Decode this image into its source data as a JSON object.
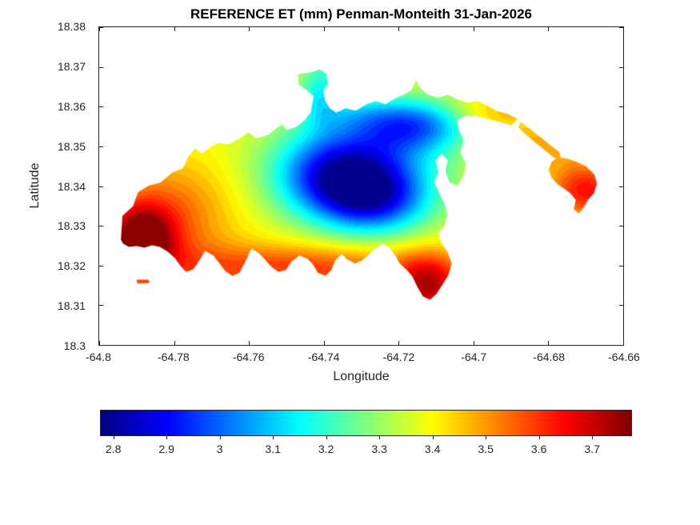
{
  "figure": {
    "title": "REFERENCE ET (mm) Penman-Monteith 31-Jan-2026",
    "xlabel": "Longitude",
    "ylabel": "Latitude",
    "background": "#ffffff",
    "axis_color": "#262626"
  },
  "chart_data": {
    "type": "heatmap",
    "subtype": "filled-contour-geographic-map",
    "title": "REFERENCE ET (mm) Penman-Monteith 31-Jan-2026",
    "variable": "Reference ET",
    "units": "mm",
    "method": "Penman-Monteith",
    "date": "31-Jan-2026",
    "xlabel": "Longitude",
    "ylabel": "Latitude",
    "xlim": [
      -64.8,
      -64.66
    ],
    "ylim": [
      18.3,
      18.38
    ],
    "grid": false,
    "x_ticks": [
      {
        "v": -64.8,
        "label": "-64.8"
      },
      {
        "v": -64.78,
        "label": "-64.78"
      },
      {
        "v": -64.76,
        "label": "-64.76"
      },
      {
        "v": -64.74,
        "label": "-64.74"
      },
      {
        "v": -64.72,
        "label": "-64.72"
      },
      {
        "v": -64.7,
        "label": "-64.7"
      },
      {
        "v": -64.68,
        "label": "-64.68"
      },
      {
        "v": -64.66,
        "label": "-64.66"
      }
    ],
    "y_ticks": [
      {
        "v": 18.3,
        "label": "18.3"
      },
      {
        "v": 18.31,
        "label": "18.31"
      },
      {
        "v": 18.32,
        "label": "18.32"
      },
      {
        "v": 18.33,
        "label": "18.33"
      },
      {
        "v": 18.34,
        "label": "18.34"
      },
      {
        "v": 18.35,
        "label": "18.35"
      },
      {
        "v": 18.36,
        "label": "18.36"
      },
      {
        "v": 18.37,
        "label": "18.37"
      },
      {
        "v": 18.38,
        "label": "18.38"
      }
    ],
    "clim": [
      2.775,
      3.775
    ],
    "band_step": 0.025,
    "colormap_name": "jet",
    "colormap": [
      [
        0.0,
        [
          0,
          0,
          0.5
        ]
      ],
      [
        0.125,
        [
          0,
          0,
          1
        ]
      ],
      [
        0.375,
        [
          0,
          1,
          1
        ]
      ],
      [
        0.625,
        [
          1,
          1,
          0
        ]
      ],
      [
        0.875,
        [
          1,
          0,
          0
        ]
      ],
      [
        1.0,
        [
          0.5,
          0,
          0
        ]
      ]
    ],
    "colorbar_ticks": [
      {
        "v": 2.8,
        "label": "2.8"
      },
      {
        "v": 2.9,
        "label": "2.9"
      },
      {
        "v": 3.0,
        "label": "3"
      },
      {
        "v": 3.1,
        "label": "3.1"
      },
      {
        "v": 3.2,
        "label": "3.2"
      },
      {
        "v": 3.3,
        "label": "3.3"
      },
      {
        "v": 3.4,
        "label": "3.4"
      },
      {
        "v": 3.5,
        "label": "3.5"
      },
      {
        "v": 3.6,
        "label": "3.6"
      },
      {
        "v": 3.7,
        "label": "3.7"
      }
    ],
    "field_model": {
      "base": 3.38,
      "sources": [
        {
          "lon": -64.789,
          "lat": 18.326,
          "amp": 0.4,
          "sx": 0.006,
          "sy": 0.006
        },
        {
          "lon": -64.782,
          "lat": 18.332,
          "amp": 0.18,
          "sx": 0.012,
          "sy": 0.01
        },
        {
          "lon": -64.748,
          "lat": 18.319,
          "amp": 0.22,
          "sx": 0.028,
          "sy": 0.0045
        },
        {
          "lon": -64.712,
          "lat": 18.314,
          "amp": 0.3,
          "sx": 0.006,
          "sy": 0.006
        },
        {
          "lon": -64.737,
          "lat": 18.343,
          "amp": -0.42,
          "sx": 0.012,
          "sy": 0.0075
        },
        {
          "lon": -64.7265,
          "lat": 18.337,
          "amp": -0.42,
          "sx": 0.011,
          "sy": 0.0065
        },
        {
          "lon": -64.716,
          "lat": 18.3555,
          "amp": -0.28,
          "sx": 0.01,
          "sy": 0.0045
        },
        {
          "lon": -64.722,
          "lat": 18.351,
          "amp": -0.16,
          "sx": 0.016,
          "sy": 0.007
        },
        {
          "lon": -64.741,
          "lat": 18.365,
          "amp": -0.18,
          "sx": 0.004,
          "sy": 0.006
        },
        {
          "lon": -64.67,
          "lat": 18.339,
          "amp": 0.26,
          "sx": 0.007,
          "sy": 0.005
        },
        {
          "lon": -64.685,
          "lat": 18.35,
          "amp": 0.12,
          "sx": 0.01,
          "sy": 0.004
        },
        {
          "lon": -64.695,
          "lat": 18.3585,
          "amp": 0.1,
          "sx": 0.008,
          "sy": 0.003
        },
        {
          "lon": -64.733,
          "lat": 18.359,
          "amp": -0.1,
          "sx": 0.01,
          "sy": 0.004
        }
      ]
    },
    "regions": [
      [
        [
          -64.7942,
          18.3265
        ],
        [
          -64.7938,
          18.3325
        ],
        [
          -64.791,
          18.3349
        ],
        [
          -64.7896,
          18.3385
        ],
        [
          -64.7868,
          18.3401
        ],
        [
          -64.7836,
          18.3409
        ],
        [
          -64.7804,
          18.3435
        ],
        [
          -64.7776,
          18.3445
        ],
        [
          -64.7761,
          18.3475
        ],
        [
          -64.7744,
          18.3495
        ],
        [
          -64.7725,
          18.3481
        ],
        [
          -64.7708,
          18.3495
        ],
        [
          -64.7683,
          18.3509
        ],
        [
          -64.7655,
          18.3505
        ],
        [
          -64.7623,
          18.3521
        ],
        [
          -64.7602,
          18.3535
        ],
        [
          -64.758,
          18.3521
        ],
        [
          -64.7548,
          18.3529
        ],
        [
          -64.7527,
          18.3545
        ],
        [
          -64.7512,
          18.3555
        ],
        [
          -64.7499,
          18.3541
        ],
        [
          -64.7474,
          18.3549
        ],
        [
          -64.7452,
          18.3565
        ],
        [
          -64.7435,
          18.3585
        ],
        [
          -64.7427,
          18.3626
        ],
        [
          -64.7446,
          18.3642
        ],
        [
          -64.7467,
          18.3656
        ],
        [
          -64.7469,
          18.3682
        ],
        [
          -64.7435,
          18.3686
        ],
        [
          -64.741,
          18.3694
        ],
        [
          -64.7393,
          18.3682
        ],
        [
          -64.7388,
          18.3658
        ],
        [
          -64.7401,
          18.3642
        ],
        [
          -64.7397,
          18.3616
        ],
        [
          -64.7384,
          18.3596
        ],
        [
          -64.7367,
          18.3585
        ],
        [
          -64.7342,
          18.3596
        ],
        [
          -64.7314,
          18.359
        ],
        [
          -64.7286,
          18.3606
        ],
        [
          -64.7261,
          18.3614
        ],
        [
          -64.7235,
          18.3606
        ],
        [
          -64.7207,
          18.3622
        ],
        [
          -64.7186,
          18.363
        ],
        [
          -64.7165,
          18.3642
        ],
        [
          -64.7154,
          18.3666
        ],
        [
          -64.7141,
          18.3646
        ],
        [
          -64.7122,
          18.363
        ],
        [
          -64.7094,
          18.3622
        ],
        [
          -64.7069,
          18.363
        ],
        [
          -64.7043,
          18.3618
        ],
        [
          -64.7016,
          18.361
        ],
        [
          -64.6988,
          18.3614
        ],
        [
          -64.6962,
          18.3602
        ],
        [
          -64.6937,
          18.3589
        ],
        [
          -64.6909,
          18.3582
        ],
        [
          -64.6881,
          18.3569
        ],
        [
          -64.6898,
          18.3553
        ],
        [
          -64.693,
          18.3561
        ],
        [
          -64.6962,
          18.3569
        ],
        [
          -64.6994,
          18.3577
        ],
        [
          -64.7022,
          18.3577
        ],
        [
          -64.7043,
          18.3565
        ],
        [
          -64.7039,
          18.3541
        ],
        [
          -64.7026,
          18.3515
        ],
        [
          -64.7035,
          18.3485
        ],
        [
          -64.702,
          18.3455
        ],
        [
          -64.7026,
          18.3425
        ],
        [
          -64.7043,
          18.3401
        ],
        [
          -64.7064,
          18.3409
        ],
        [
          -64.7075,
          18.3437
        ],
        [
          -64.7069,
          18.3465
        ],
        [
          -64.7086,
          18.3481
        ],
        [
          -64.7101,
          18.3465
        ],
        [
          -64.7094,
          18.3435
        ],
        [
          -64.7105,
          18.3409
        ],
        [
          -64.709,
          18.3381
        ],
        [
          -64.7077,
          18.3355
        ],
        [
          -64.7069,
          18.3329
        ],
        [
          -64.7077,
          18.3301
        ],
        [
          -64.7094,
          18.3281
        ],
        [
          -64.7084,
          18.3255
        ],
        [
          -64.7069,
          18.3233
        ],
        [
          -64.7058,
          18.3205
        ],
        [
          -64.7067,
          18.3176
        ],
        [
          -64.7084,
          18.315
        ],
        [
          -64.7099,
          18.3128
        ],
        [
          -64.7116,
          18.3114
        ],
        [
          -64.7135,
          18.3122
        ],
        [
          -64.715,
          18.3146
        ],
        [
          -64.7163,
          18.3172
        ],
        [
          -64.7178,
          18.3189
        ],
        [
          -64.7197,
          18.3205
        ],
        [
          -64.721,
          18.3227
        ],
        [
          -64.7225,
          18.3245
        ],
        [
          -64.7244,
          18.3255
        ],
        [
          -64.7263,
          18.3243
        ],
        [
          -64.728,
          18.3227
        ],
        [
          -64.7297,
          18.3213
        ],
        [
          -64.7316,
          18.3205
        ],
        [
          -64.7337,
          18.3215
        ],
        [
          -64.7352,
          18.3229
        ],
        [
          -64.7369,
          18.3213
        ],
        [
          -64.738,
          18.3189
        ],
        [
          -64.7395,
          18.3174
        ],
        [
          -64.7416,
          18.3182
        ],
        [
          -64.7429,
          18.3203
        ],
        [
          -64.7444,
          18.3217
        ],
        [
          -64.7465,
          18.3225
        ],
        [
          -64.7487,
          18.3209
        ],
        [
          -64.7501,
          18.3189
        ],
        [
          -64.7521,
          18.3184
        ],
        [
          -64.754,
          18.3197
        ],
        [
          -64.7557,
          18.3215
        ],
        [
          -64.7574,
          18.3231
        ],
        [
          -64.7593,
          18.3243
        ],
        [
          -64.761,
          18.3209
        ],
        [
          -64.7625,
          18.3182
        ],
        [
          -64.7644,
          18.3174
        ],
        [
          -64.7663,
          18.3186
        ],
        [
          -64.768,
          18.3207
        ],
        [
          -64.7695,
          18.3225
        ],
        [
          -64.7717,
          18.3237
        ],
        [
          -64.7732,
          18.3213
        ],
        [
          -64.7749,
          18.319
        ],
        [
          -64.7768,
          18.3184
        ],
        [
          -64.7783,
          18.3199
        ],
        [
          -64.7798,
          18.3219
        ],
        [
          -64.7817,
          18.3235
        ],
        [
          -64.7838,
          18.3247
        ],
        [
          -64.7859,
          18.3251
        ],
        [
          -64.7879,
          18.3245
        ],
        [
          -64.79,
          18.3249
        ],
        [
          -64.7921,
          18.3247
        ],
        [
          -64.7936,
          18.3255
        ]
      ],
      [
        [
          -64.6873,
          18.3561
        ],
        [
          -64.6845,
          18.3541
        ],
        [
          -64.6818,
          18.3521
        ],
        [
          -64.6792,
          18.3501
        ],
        [
          -64.677,
          18.3485
        ],
        [
          -64.6766,
          18.3465
        ],
        [
          -64.6787,
          18.3473
        ],
        [
          -64.6813,
          18.3493
        ],
        [
          -64.6839,
          18.3513
        ],
        [
          -64.6864,
          18.3533
        ],
        [
          -64.6881,
          18.3549
        ]
      ],
      [
        [
          -64.6775,
          18.3473
        ],
        [
          -64.6749,
          18.3469
        ],
        [
          -64.6724,
          18.3461
        ],
        [
          -64.6698,
          18.3449
        ],
        [
          -64.6677,
          18.3429
        ],
        [
          -64.667,
          18.3405
        ],
        [
          -64.6679,
          18.3381
        ],
        [
          -64.6694,
          18.3365
        ],
        [
          -64.6706,
          18.3345
        ],
        [
          -64.6719,
          18.3331
        ],
        [
          -64.6732,
          18.3341
        ],
        [
          -64.6727,
          18.3365
        ],
        [
          -64.674,
          18.3381
        ],
        [
          -64.6757,
          18.3393
        ],
        [
          -64.6776,
          18.3405
        ],
        [
          -64.6791,
          18.3421
        ],
        [
          -64.68,
          18.3441
        ],
        [
          -64.6791,
          18.3461
        ]
      ],
      [
        [
          -64.79,
          18.3164
        ],
        [
          -64.7868,
          18.3164
        ],
        [
          -64.7866,
          18.3156
        ],
        [
          -64.7898,
          18.3154
        ]
      ]
    ]
  }
}
